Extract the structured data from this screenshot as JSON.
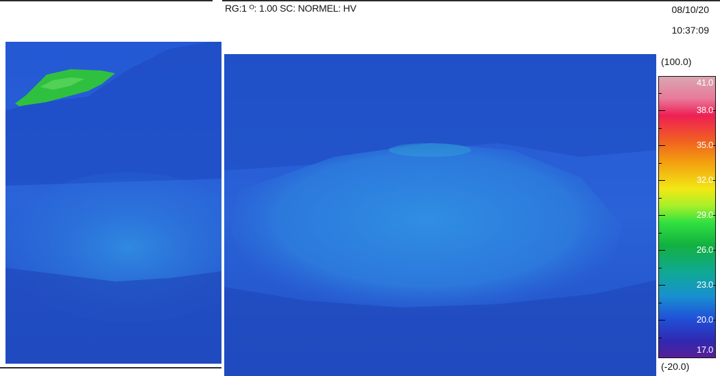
{
  "header": {
    "status_line": "RG:1 ᴼ: 1.00 SC: NORMEL: HV",
    "date": "08/10/20",
    "time": "10:37:09"
  },
  "scale": {
    "range_max": "(100.0)",
    "range_min": "(-20.0)",
    "ticks": [
      "41.0",
      "38.0",
      "35.0",
      "32.0",
      "29.0",
      "26.0",
      "23.0",
      "20.0",
      "17.0"
    ]
  },
  "colors": {
    "background_blue": "#2a5ad0",
    "hot_green": "#30c040",
    "accent_cyan": "#2a84dc"
  }
}
